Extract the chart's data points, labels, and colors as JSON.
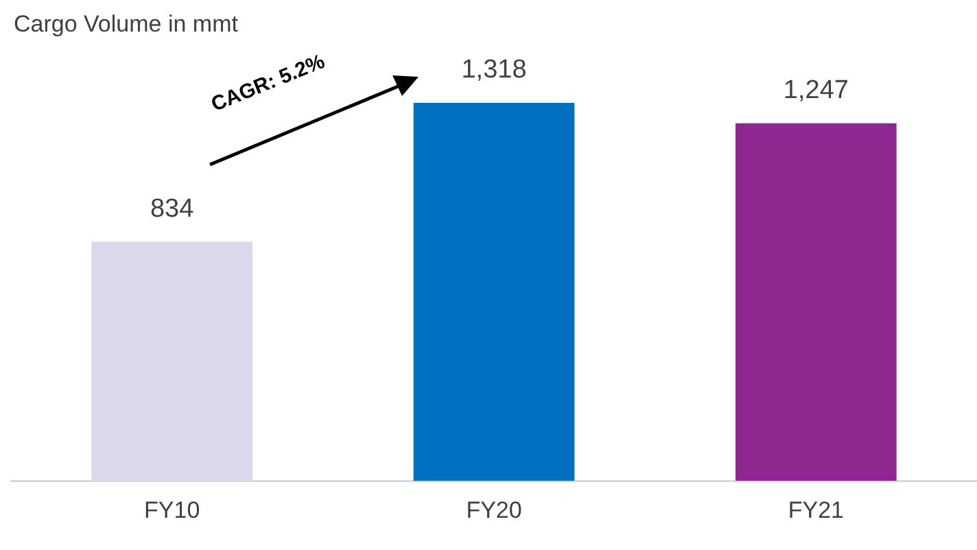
{
  "chart_data": {
    "type": "bar",
    "title": "Cargo Volume in mmt",
    "categories": [
      "FY10",
      "FY20",
      "FY21"
    ],
    "values": [
      834,
      1318,
      1247
    ],
    "value_labels": [
      "834",
      "1,318",
      "1,247"
    ],
    "colors": [
      "#dcd8ec",
      "#0070c0",
      "#8e278f"
    ],
    "annotations": [
      "CAGR: 5.2%"
    ]
  }
}
